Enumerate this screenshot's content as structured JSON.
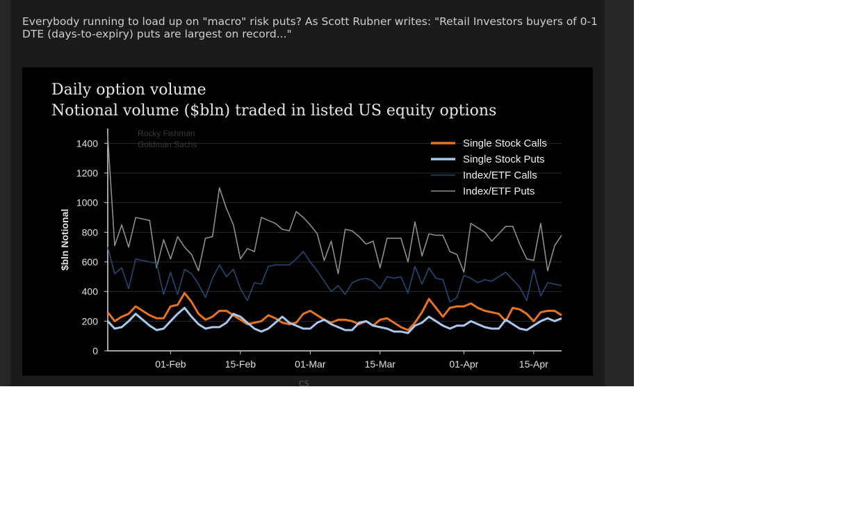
{
  "article": {
    "text": "Everybody running to load up on \"macro\" risk puts? As Scott Rubner writes: \"Retail Investors buyers of 0-1 DTE (days-to-expiry) puts are largest on record...\""
  },
  "chart_data": {
    "type": "line",
    "title": "Daily option volume",
    "subtitle": "Notional volume ($bln) traded in listed US equity options",
    "ylabel": "$bln Notional",
    "xlabel": "",
    "ylim": [
      0,
      1500
    ],
    "yticks": [
      0,
      200,
      400,
      600,
      800,
      1000,
      1200,
      1400
    ],
    "xticks": [
      {
        "label": "01-Feb",
        "index": 9
      },
      {
        "label": "15-Feb",
        "index": 19
      },
      {
        "label": "01-Mar",
        "index": 29
      },
      {
        "label": "15-Mar",
        "index": 39
      },
      {
        "label": "01-Apr",
        "index": 51
      },
      {
        "label": "15-Apr",
        "index": 61
      }
    ],
    "watermark": [
      "Rocky Fishman",
      "Goldman Sachs"
    ],
    "legend_position": "top-right",
    "grid": true,
    "n_points": 66,
    "series": [
      {
        "name": "Index/ETF Puts",
        "color": "#8f8f8f",
        "values": [
          1450,
          710,
          850,
          700,
          900,
          890,
          880,
          560,
          750,
          620,
          770,
          700,
          650,
          540,
          760,
          770,
          1100,
          960,
          850,
          620,
          690,
          670,
          900,
          880,
          860,
          820,
          810,
          940,
          900,
          850,
          790,
          610,
          740,
          520,
          820,
          810,
          770,
          720,
          740,
          560,
          760,
          760,
          760,
          600,
          870,
          640,
          790,
          780,
          780,
          670,
          650,
          530,
          860,
          830,
          800,
          740,
          790,
          840,
          840,
          720,
          620,
          610,
          860,
          540,
          710,
          780
        ]
      },
      {
        "name": "Index/ETF Calls",
        "color": "#1f4a73",
        "values": [
          700,
          520,
          560,
          420,
          620,
          610,
          600,
          590,
          380,
          530,
          380,
          550,
          520,
          450,
          360,
          490,
          580,
          500,
          550,
          420,
          340,
          460,
          450,
          570,
          580,
          580,
          580,
          620,
          670,
          600,
          540,
          470,
          400,
          440,
          380,
          460,
          480,
          490,
          470,
          420,
          500,
          490,
          500,
          390,
          570,
          450,
          560,
          490,
          480,
          330,
          360,
          510,
          490,
          460,
          480,
          470,
          500,
          530,
          480,
          430,
          340,
          550,
          370,
          460,
          450,
          440
        ]
      },
      {
        "name": "Single Stock Calls",
        "color": "#e8731e",
        "values": [
          260,
          200,
          230,
          250,
          300,
          270,
          240,
          220,
          220,
          300,
          310,
          390,
          330,
          250,
          210,
          230,
          270,
          270,
          240,
          210,
          180,
          190,
          200,
          240,
          220,
          190,
          180,
          190,
          250,
          270,
          240,
          210,
          190,
          210,
          210,
          200,
          180,
          200,
          170,
          210,
          220,
          190,
          160,
          140,
          190,
          260,
          350,
          290,
          230,
          290,
          300,
          300,
          320,
          290,
          270,
          260,
          250,
          200,
          290,
          280,
          250,
          200,
          260,
          270,
          270,
          240
        ]
      },
      {
        "name": "Single Stock Puts",
        "color": "#a9c8ee",
        "values": [
          200,
          150,
          160,
          200,
          250,
          210,
          170,
          140,
          150,
          200,
          250,
          290,
          230,
          180,
          150,
          160,
          160,
          190,
          250,
          230,
          190,
          150,
          130,
          150,
          190,
          230,
          190,
          170,
          150,
          150,
          190,
          210,
          180,
          160,
          140,
          140,
          190,
          200,
          170,
          160,
          150,
          130,
          130,
          120,
          170,
          190,
          230,
          200,
          170,
          150,
          170,
          170,
          200,
          180,
          160,
          150,
          150,
          210,
          180,
          150,
          140,
          170,
          200,
          220,
          200,
          220
        ]
      }
    ]
  },
  "footer": {
    "fade_text": "CS"
  }
}
